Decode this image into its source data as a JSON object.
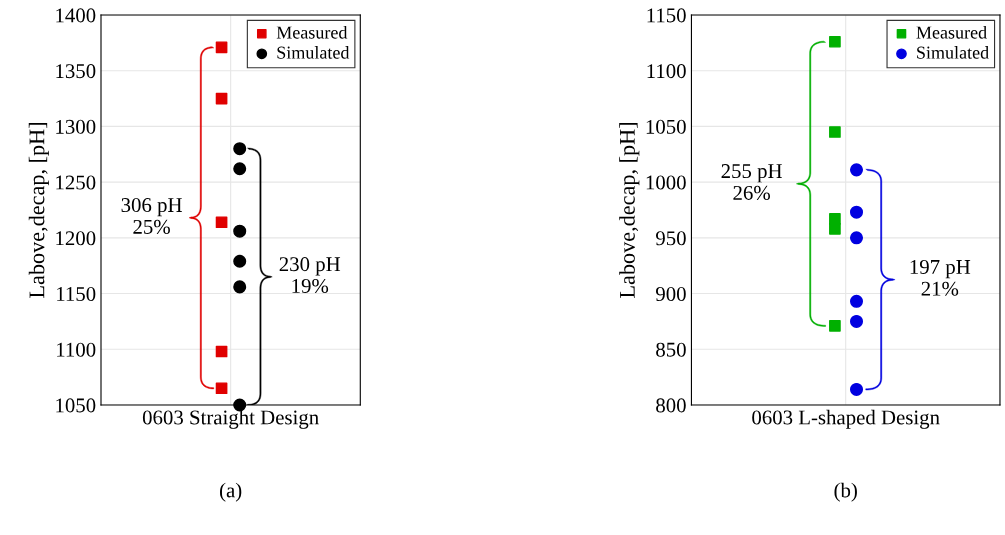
{
  "chart_data": [
    {
      "type": "scatter",
      "categories": [
        "0603 Straight Design"
      ],
      "ylabel": "Labove,decap, [pH]",
      "ylim": [
        1050,
        1400
      ],
      "yticks": [
        1050,
        1100,
        1150,
        1200,
        1250,
        1300,
        1350,
        1400
      ],
      "grid": true,
      "legend": "top right",
      "series": [
        {
          "name": "Measured",
          "color": "#e00000",
          "marker": "square",
          "x": [
            "0603 Straight Design",
            "0603 Straight Design",
            "0603 Straight Design",
            "0603 Straight Design",
            "0603 Straight Design"
          ],
          "values": [
            1371,
            1325,
            1214,
            1098,
            1065
          ]
        },
        {
          "name": "Simulated",
          "color": "#000000",
          "marker": "circle",
          "x": [
            "0603 Straight Design",
            "0603 Straight Design",
            "0603 Straight Design",
            "0603 Straight Design",
            "0603 Straight Design",
            "0603 Straight Design"
          ],
          "values": [
            1280,
            1262,
            1206,
            1179,
            1156,
            1050
          ]
        }
      ],
      "annotations": [
        "306 pH\n25%",
        "230 pH\n19%",
        "(a)"
      ]
    },
    {
      "type": "scatter",
      "categories": [
        "0603 L-shaped Design"
      ],
      "ylabel": "Labove,decap, [pH]",
      "ylim": [
        800,
        1150
      ],
      "yticks": [
        800,
        850,
        900,
        950,
        1000,
        1050,
        1100,
        1150
      ],
      "grid": true,
      "legend": "top right",
      "series": [
        {
          "name": "Measured",
          "color": "#00b000",
          "marker": "square",
          "x": [
            "0603 L-shaped Design",
            "0603 L-shaped Design",
            "0603 L-shaped Design",
            "0603 L-shaped Design",
            "0603 L-shaped Design"
          ],
          "values": [
            1126,
            1045,
            967,
            958,
            871
          ]
        },
        {
          "name": "Simulated",
          "color": "#0000e0",
          "marker": "circle",
          "x": [
            "0603 L-shaped Design",
            "0603 L-shaped Design",
            "0603 L-shaped Design",
            "0603 L-shaped Design",
            "0603 L-shaped Design",
            "0603 L-shaped Design"
          ],
          "values": [
            1011,
            973,
            950,
            893,
            875,
            814
          ]
        }
      ],
      "annotations": [
        "255 pH\n26%",
        "197 pH\n21%",
        "(b)"
      ]
    }
  ]
}
